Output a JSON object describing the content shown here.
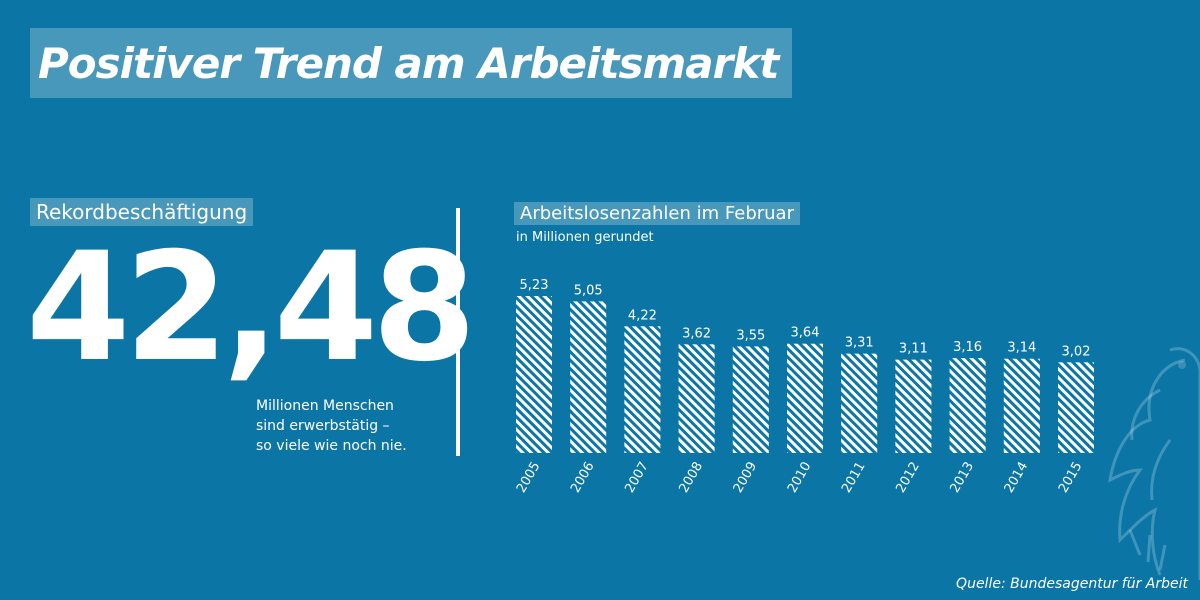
{
  "header": {
    "title": "Positiver Trend am Arbeitsmarkt"
  },
  "left_panel": {
    "label": "Rekordbeschäftigung",
    "big_number": "42,48",
    "caption_lines": [
      "Millionen Menschen",
      "sind erwerbstätig –",
      "so viele wie noch nie."
    ]
  },
  "footer": {
    "source": "Quelle: Bundesagentur für Arbeit"
  },
  "colors": {
    "background": "#0b76a6",
    "foreground": "#ffffff"
  },
  "chart_data": {
    "type": "bar",
    "title": "Arbeitslosenzahlen im Februar",
    "subtitle": "in Millionen gerundet",
    "categories": [
      "2005",
      "2006",
      "2007",
      "2008",
      "2009",
      "2010",
      "2011",
      "2012",
      "2013",
      "2014",
      "2015"
    ],
    "values": [
      5.23,
      5.05,
      4.22,
      3.62,
      3.55,
      3.64,
      3.31,
      3.11,
      3.16,
      3.14,
      3.02
    ],
    "value_labels": [
      "5,23",
      "5,05",
      "4,22",
      "3,62",
      "3,55",
      "3,64",
      "3,31",
      "3,11",
      "3,16",
      "3,14",
      "3,02"
    ],
    "xlabel": "",
    "ylabel": "",
    "grid": false
  }
}
